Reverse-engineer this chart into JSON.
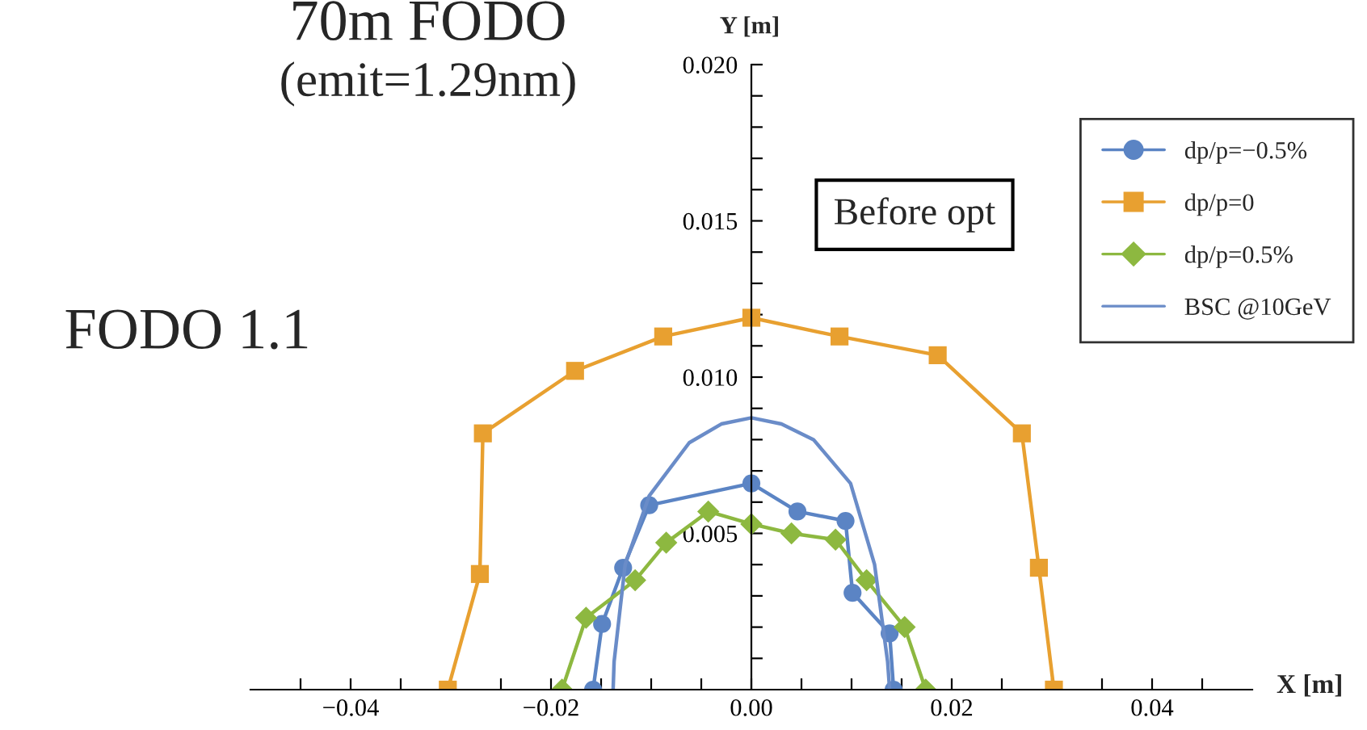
{
  "chart_data": {
    "type": "line",
    "xlabel": "X [m]",
    "ylabel": "Y [m]",
    "annotations": [
      "70m FODO",
      "(emit=1.29nm)",
      "FODO 1.1",
      "Before opt"
    ],
    "xlim": [
      -0.05,
      0.05
    ],
    "ylim": [
      0,
      0.02
    ],
    "xticks": [
      {
        "value": -0.045,
        "label": null
      },
      {
        "value": -0.04,
        "label": "−0.04"
      },
      {
        "value": -0.035,
        "label": null
      },
      {
        "value": -0.03,
        "label": null
      },
      {
        "value": -0.025,
        "label": null
      },
      {
        "value": -0.02,
        "label": "−0.02"
      },
      {
        "value": -0.015,
        "label": null
      },
      {
        "value": -0.01,
        "label": null
      },
      {
        "value": -0.005,
        "label": null
      },
      {
        "value": 0,
        "label": "0.00"
      },
      {
        "value": 0.005,
        "label": null
      },
      {
        "value": 0.01,
        "label": null
      },
      {
        "value": 0.015,
        "label": null
      },
      {
        "value": 0.02,
        "label": "0.02"
      },
      {
        "value": 0.025,
        "label": null
      },
      {
        "value": 0.03,
        "label": null
      },
      {
        "value": 0.035,
        "label": null
      },
      {
        "value": 0.04,
        "label": "0.04"
      },
      {
        "value": 0.045,
        "label": null
      }
    ],
    "yticks": [
      {
        "value": 0.001,
        "label": null
      },
      {
        "value": 0.002,
        "label": null
      },
      {
        "value": 0.003,
        "label": null
      },
      {
        "value": 0.004,
        "label": null
      },
      0.005,
      {
        "value": 0.006,
        "label": null
      },
      {
        "value": 0.007,
        "label": null
      },
      {
        "value": 0.008,
        "label": null
      },
      {
        "value": 0.009,
        "label": null
      },
      {
        "value": 0.01,
        "label": "0.010"
      },
      {
        "value": 0.011,
        "label": null
      },
      {
        "value": 0.012,
        "label": null
      },
      {
        "value": 0.013,
        "label": null
      },
      {
        "value": 0.014,
        "label": null
      },
      0.015,
      {
        "value": 0.016,
        "label": null
      },
      {
        "value": 0.017,
        "label": null
      },
      {
        "value": 0.018,
        "label": null
      },
      {
        "value": 0.019,
        "label": null
      },
      {
        "value": 0.02,
        "label": "0.020"
      }
    ],
    "grid": false,
    "legend": "top right",
    "series": [
      {
        "name": "dp/p=−0.5%",
        "color": "#5b84c4",
        "marker": "circle",
        "x": [
          -0.0158,
          -0.0149,
          -0.0128,
          -0.0102,
          0,
          0.0046,
          0.0094,
          0.0101,
          0.0138,
          0.0142
        ],
        "values": [
          0,
          0.0021,
          0.0039,
          0.0059,
          0.0066,
          0.0057,
          0.0054,
          0.0031,
          0.0018,
          0
        ]
      },
      {
        "name": "dp/p=0",
        "color": "#e8a030",
        "marker": "square",
        "x": [
          -0.0303,
          -0.0271,
          -0.0268,
          -0.0176,
          -0.0088,
          0,
          0.0088,
          0.0186,
          0.027,
          0.0287,
          0.0302
        ],
        "values": [
          0,
          0.0037,
          0.0082,
          0.0102,
          0.0113,
          0.0119,
          0.0113,
          0.0107,
          0.0082,
          0.0039,
          0
        ]
      },
      {
        "name": "dp/p=0.5%",
        "color": "#8db840",
        "marker": "diamond",
        "x": [
          -0.0189,
          -0.0165,
          -0.0116,
          -0.0085,
          -0.0043,
          0,
          0.004,
          0.0084,
          0.0115,
          0.0153,
          0.0174
        ],
        "values": [
          0,
          0.0023,
          0.0035,
          0.0047,
          0.0057,
          0.0053,
          0.005,
          0.0048,
          0.0035,
          0.002,
          0
        ]
      },
      {
        "name": "BSC @10GeV",
        "color": "#6a8cc8",
        "marker": "none",
        "x": [
          -0.0138,
          -0.0137,
          -0.0126,
          -0.0102,
          -0.0062,
          -0.003,
          0,
          0.003,
          0.0062,
          0.0099,
          0.0123,
          0.0136,
          0.0138
        ],
        "values": [
          0,
          0.0009,
          0.004,
          0.0062,
          0.0079,
          0.0085,
          0.0087,
          0.0085,
          0.008,
          0.0066,
          0.004,
          0.0009,
          0
        ]
      }
    ]
  }
}
